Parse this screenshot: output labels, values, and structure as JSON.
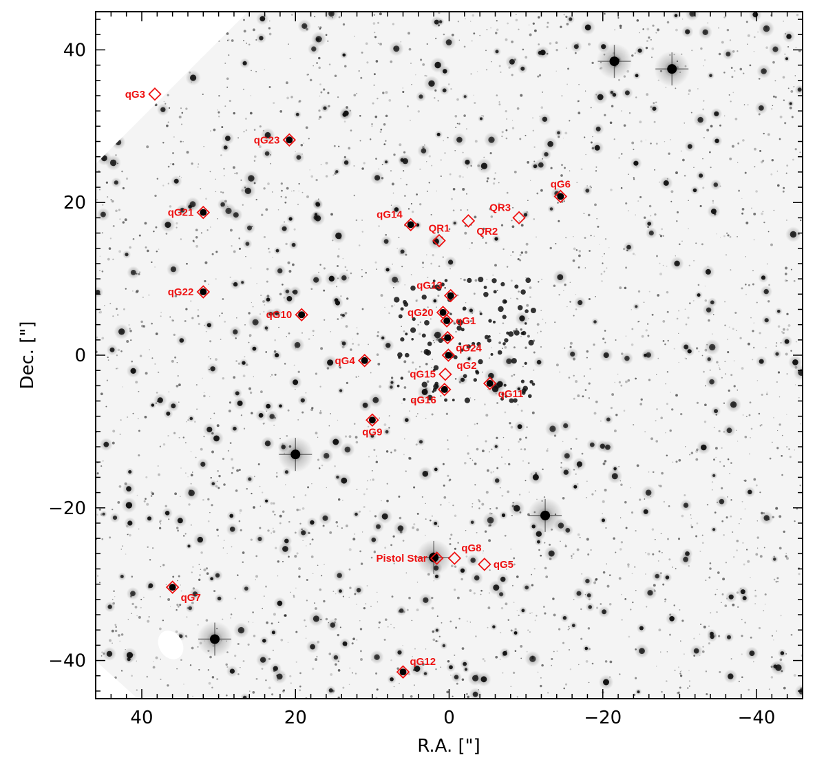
{
  "axes": {
    "xlabel": "R.A. [\"]",
    "ylabel": "Dec. [\"]",
    "xlim": [
      46,
      -46
    ],
    "ylim": [
      -45,
      45
    ],
    "x_ticks": [
      40,
      20,
      0,
      -20,
      -40
    ],
    "x_tick_labels": [
      "40",
      "20",
      "0",
      "−20",
      "−40"
    ],
    "y_ticks": [
      40,
      20,
      0,
      -20,
      -40
    ],
    "y_tick_labels": [
      "40",
      "20",
      "0",
      "−20",
      "−40"
    ],
    "x_minor_step": 2,
    "y_minor_step": 2
  },
  "colors": {
    "marker": "#ee1111",
    "label": "#ee1111",
    "sky": "#f4f4f4",
    "frame": "#000000"
  },
  "sources": [
    {
      "name": "qG3",
      "ra": 38.3,
      "dec": 34.2,
      "filled": false,
      "label_pos": "left"
    },
    {
      "name": "qG23",
      "ra": 20.8,
      "dec": 28.2,
      "filled": true,
      "label_pos": "left"
    },
    {
      "name": "qG21",
      "ra": 32.0,
      "dec": 18.7,
      "filled": true,
      "label_pos": "left"
    },
    {
      "name": "qG22",
      "ra": 32.0,
      "dec": 8.3,
      "filled": true,
      "label_pos": "left"
    },
    {
      "name": "qG10",
      "ra": 19.2,
      "dec": 5.3,
      "filled": true,
      "label_pos": "left"
    },
    {
      "name": "qG14",
      "ra": 5.0,
      "dec": 17.1,
      "filled": true,
      "label_pos": "upleft"
    },
    {
      "name": "QR1",
      "ra": 1.3,
      "dec": 15.0,
      "filled": false,
      "label_pos": "up"
    },
    {
      "name": "QR2",
      "ra": -2.5,
      "dec": 17.6,
      "filled": false,
      "label_pos": "downright"
    },
    {
      "name": "QR3",
      "ra": -9.1,
      "dec": 18.0,
      "filled": false,
      "label_pos": "upleft"
    },
    {
      "name": "qG6",
      "ra": -14.5,
      "dec": 20.8,
      "filled": true,
      "label_pos": "up"
    },
    {
      "name": "qG13",
      "ra": -0.2,
      "dec": 7.8,
      "filled": true,
      "label_pos": "upleft"
    },
    {
      "name": "qG20",
      "ra": 0.8,
      "dec": 5.6,
      "filled": true,
      "label_pos": "left"
    },
    {
      "name": "qG1",
      "ra": 0.3,
      "dec": 4.5,
      "filled": true,
      "label_pos": "right"
    },
    {
      "name": "qG24",
      "ra": 0.2,
      "dec": 2.3,
      "filled": true,
      "label_pos": "downright"
    },
    {
      "name": "qG2",
      "ra": 0.1,
      "dec": 0.0,
      "filled": true,
      "label_pos": "downright"
    },
    {
      "name": "qG4",
      "ra": 11.0,
      "dec": -0.7,
      "filled": true,
      "label_pos": "left"
    },
    {
      "name": "qG15",
      "ra": 0.5,
      "dec": -2.5,
      "filled": false,
      "label_pos": "left"
    },
    {
      "name": "qG16",
      "ra": 0.6,
      "dec": -4.5,
      "filled": true,
      "label_pos": "downleft"
    },
    {
      "name": "qG11",
      "ra": -5.3,
      "dec": -3.7,
      "filled": true,
      "label_pos": "downright"
    },
    {
      "name": "qG9",
      "ra": 10.0,
      "dec": -8.5,
      "filled": true,
      "label_pos": "down"
    },
    {
      "name": "Pistol Star",
      "ra": 1.6,
      "dec": -26.6,
      "filled": false,
      "label_pos": "left"
    },
    {
      "name": "qG8",
      "ra": -0.7,
      "dec": -26.6,
      "filled": false,
      "label_pos": "upright"
    },
    {
      "name": "qG5",
      "ra": -4.6,
      "dec": -27.4,
      "filled": false,
      "label_pos": "right"
    },
    {
      "name": "qG7",
      "ra": 36.0,
      "dec": -30.4,
      "filled": true,
      "label_pos": "downright"
    },
    {
      "name": "qG12",
      "ra": 6.0,
      "dec": -41.5,
      "filled": true,
      "label_pos": "upright"
    }
  ]
}
